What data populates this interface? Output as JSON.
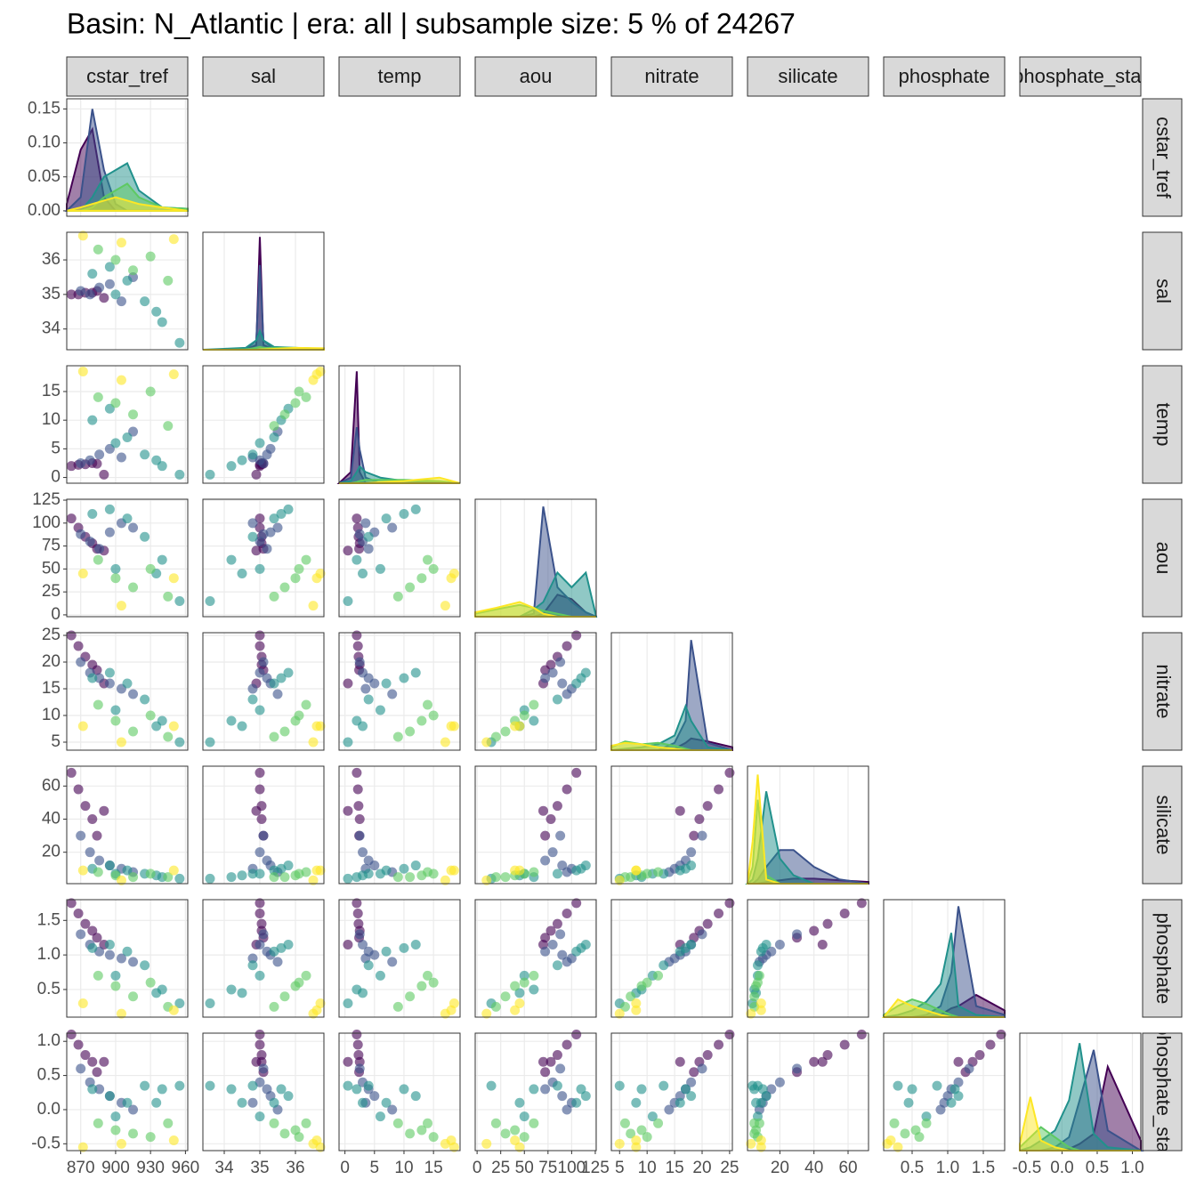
{
  "chart_data": {
    "type": "pairs",
    "title": "Basin: N_Atlantic | era: all | subsample size: 5 % of 24267",
    "variables": [
      {
        "name": "cstar_tref",
        "lim": [
          858,
          962
        ],
        "ticks": [
          870,
          900,
          930,
          960
        ]
      },
      {
        "name": "sal",
        "lim": [
          33.4,
          36.8
        ],
        "ticks": [
          34,
          35,
          36
        ]
      },
      {
        "name": "temp",
        "lim": [
          -1,
          19.5
        ],
        "ticks": [
          0,
          5,
          10,
          15
        ]
      },
      {
        "name": "aou",
        "lim": [
          -2,
          126
        ],
        "ticks": [
          0,
          25,
          50,
          75,
          100,
          125
        ]
      },
      {
        "name": "nitrate",
        "lim": [
          3.5,
          25.5
        ],
        "ticks": [
          5,
          10,
          15,
          20,
          25
        ]
      },
      {
        "name": "silicate",
        "lim": [
          1,
          72
        ],
        "ticks": [
          20,
          40,
          60
        ]
      },
      {
        "name": "phosphate",
        "lim": [
          0.1,
          1.8
        ],
        "ticks": [
          0.5,
          {
            "value": 1,
            "label": "1.0"
          },
          1.5
        ]
      },
      {
        "name": "phosphate_star",
        "lim": [
          -0.6,
          1.12
        ],
        "ticks": [
          -0.5,
          {
            "value": 0,
            "label": "0.0"
          },
          0.5,
          {
            "value": 1,
            "label": "1.0"
          }
        ]
      }
    ],
    "series": [
      {
        "color": "#440154",
        "values": [
          [
            862,
            35.0,
            2.0,
            105,
            25,
            68,
            1.75,
            1.1
          ],
          [
            868,
            35.0,
            2.2,
            95,
            23,
            58,
            1.6,
            0.95
          ],
          [
            874,
            35.05,
            2.3,
            85,
            21,
            48,
            1.45,
            0.8
          ],
          [
            880,
            35.05,
            2.5,
            78,
            19.5,
            40,
            1.35,
            0.7
          ],
          [
            884,
            35.1,
            2.4,
            72,
            18.5,
            30,
            1.25,
            0.55
          ],
          [
            890,
            34.9,
            0.5,
            70,
            16,
            45,
            1.15,
            0.7
          ]
        ]
      },
      {
        "color": "#3b528b",
        "values": [
          [
            870,
            35.1,
            2.5,
            88,
            20,
            30,
            1.3,
            0.6
          ],
          [
            878,
            35.0,
            3.0,
            80,
            18,
            20,
            1.15,
            0.4
          ],
          [
            886,
            35.2,
            4.0,
            72,
            17,
            15,
            1.05,
            0.3
          ],
          [
            895,
            35.3,
            5.0,
            90,
            16,
            12,
            1.0,
            0.2
          ],
          [
            905,
            34.8,
            3.5,
            100,
            15,
            10,
            0.95,
            0.1
          ],
          [
            915,
            35.5,
            8.0,
            95,
            14,
            8,
            0.9,
            0.0
          ]
        ]
      },
      {
        "color": "#21918c",
        "values": [
          [
            880,
            35.6,
            10.0,
            110,
            17,
            10,
            1.1,
            0.3
          ],
          [
            895,
            35.8,
            12.0,
            115,
            18,
            12,
            1.15,
            0.2
          ],
          [
            910,
            35.4,
            7.0,
            105,
            16,
            9,
            1.05,
            0.1
          ],
          [
            925,
            34.8,
            4.0,
            85,
            13,
            7,
            0.85,
            0.35
          ],
          [
            940,
            34.2,
            2.0,
            60,
            9,
            5,
            0.5,
            0.3
          ],
          [
            955,
            33.6,
            0.5,
            15,
            5,
            4,
            0.3,
            0.35
          ],
          [
            900,
            35.0,
            6.0,
            50,
            11,
            7,
            0.7,
            -0.1
          ],
          [
            935,
            34.5,
            3.0,
            45,
            8,
            6,
            0.45,
            0.1
          ]
        ]
      },
      {
        "color": "#5ec962",
        "values": [
          [
            885,
            36.3,
            14.0,
            60,
            12,
            8,
            0.7,
            -0.2
          ],
          [
            900,
            36.0,
            13.0,
            40,
            9,
            6,
            0.55,
            -0.3
          ],
          [
            915,
            35.7,
            11.0,
            30,
            7,
            5,
            0.4,
            -0.35
          ],
          [
            930,
            36.1,
            15.0,
            50,
            10,
            7,
            0.6,
            -0.4
          ],
          [
            945,
            35.4,
            9.0,
            20,
            6,
            5,
            0.25,
            -0.2
          ]
        ]
      },
      {
        "color": "#fde725",
        "values": [
          [
            872,
            36.7,
            18.5,
            45,
            8,
            9,
            0.3,
            -0.55
          ],
          [
            905,
            36.5,
            17.0,
            10,
            5,
            3,
            0.15,
            -0.5
          ],
          [
            950,
            36.6,
            18.0,
            40,
            8,
            9,
            0.2,
            -0.45
          ]
        ]
      }
    ],
    "densities": [
      {
        "x": [
          858,
          870,
          880,
          890,
          900,
          910,
          920,
          940,
          962
        ],
        "ylim": [
          -0.008,
          0.165
        ],
        "yticks": [
          {
            "value": 0,
            "label": "0.00"
          },
          0.05,
          {
            "value": 0.1,
            "label": "0.10"
          },
          0.15
        ],
        "curves": [
          [
            0.01,
            0.09,
            0.12,
            0.02,
            0,
            0,
            0,
            0,
            0
          ],
          [
            0,
            0.02,
            0.15,
            0.06,
            0.01,
            0,
            0,
            0,
            0
          ],
          [
            0,
            0,
            0.02,
            0.05,
            0.06,
            0.07,
            0.03,
            0.005,
            0.003
          ],
          [
            0,
            0,
            0.005,
            0.02,
            0.03,
            0.04,
            0.02,
            0.005,
            0.003
          ],
          [
            0,
            0.005,
            0.01,
            0.015,
            0.02,
            0.015,
            0.01,
            0.005,
            0
          ]
        ]
      },
      {
        "x": [
          33.4,
          34.0,
          34.6,
          34.9,
          35.0,
          35.1,
          35.4,
          36.0,
          36.8
        ],
        "ylim": [
          0,
          12.5
        ],
        "curves": [
          [
            0,
            0,
            0,
            0.5,
            12,
            0.5,
            0,
            0,
            0
          ],
          [
            0,
            0,
            0,
            1,
            9,
            1,
            0,
            0,
            0
          ],
          [
            0,
            0.1,
            0.2,
            1,
            2,
            1,
            0.3,
            0.2,
            0.1
          ],
          [
            0,
            0,
            0.05,
            0.2,
            0.3,
            0.2,
            0.2,
            0.2,
            0.1
          ],
          [
            0,
            0,
            0,
            0,
            0.05,
            0.05,
            0.1,
            0.2,
            0.15
          ]
        ]
      },
      {
        "x": [
          -1,
          1,
          2,
          2.5,
          3.5,
          6,
          10,
          16,
          19.5
        ],
        "ylim": [
          0,
          1.05
        ],
        "curves": [
          [
            0,
            0.1,
            1.0,
            0.1,
            0,
            0,
            0,
            0,
            0
          ],
          [
            0,
            0.05,
            0.5,
            0.3,
            0.05,
            0,
            0,
            0,
            0
          ],
          [
            0,
            0.02,
            0.1,
            0.15,
            0.1,
            0.05,
            0.02,
            0.01,
            0
          ],
          [
            0,
            0,
            0.01,
            0.02,
            0.03,
            0.03,
            0.03,
            0.02,
            0
          ],
          [
            0,
            0,
            0,
            0,
            0,
            0.01,
            0.02,
            0.05,
            0
          ]
        ]
      },
      {
        "x": [
          -2,
          20,
          45,
          60,
          70,
          85,
          100,
          115,
          126
        ],
        "ylim": [
          0,
          0.08
        ],
        "curves": [
          [
            0,
            0,
            0,
            0,
            0.002,
            0.015,
            0.012,
            0.003,
            0
          ],
          [
            0,
            0,
            0,
            0.002,
            0.075,
            0.02,
            0.01,
            0.003,
            0
          ],
          [
            0,
            0,
            0,
            0.005,
            0.01,
            0.03,
            0.02,
            0.03,
            0
          ],
          [
            0.002,
            0.005,
            0.008,
            0.006,
            0.004,
            0.002,
            0,
            0,
            0
          ],
          [
            0.003,
            0.006,
            0.01,
            0.006,
            0.002,
            0,
            0,
            0,
            0
          ]
        ]
      },
      {
        "x": [
          3.5,
          6,
          9,
          12,
          15,
          17,
          18,
          21,
          25.5
        ],
        "ylim": [
          0,
          0.8
        ],
        "curves": [
          [
            0,
            0,
            0,
            0,
            0.01,
            0.05,
            0.08,
            0.06,
            0.02
          ],
          [
            0,
            0,
            0,
            0,
            0.05,
            0.2,
            0.75,
            0.05,
            0
          ],
          [
            0,
            0.01,
            0.02,
            0.04,
            0.1,
            0.3,
            0.2,
            0.02,
            0
          ],
          [
            0.02,
            0.06,
            0.04,
            0.05,
            0.03,
            0.01,
            0,
            0,
            0
          ],
          [
            0.03,
            0.05,
            0.04,
            0.02,
            0.01,
            0,
            0,
            0,
            0
          ]
        ]
      },
      {
        "x": [
          1,
          4,
          7,
          12,
          20,
          28,
          40,
          55,
          72
        ],
        "ylim": [
          0,
          0.14
        ],
        "curves": [
          [
            0,
            0,
            0,
            0.002,
            0.004,
            0.006,
            0.006,
            0.004,
            0.002
          ],
          [
            0,
            0,
            0.005,
            0.02,
            0.04,
            0.04,
            0.02,
            0.005,
            0
          ],
          [
            0,
            0.005,
            0.03,
            0.11,
            0.03,
            0.01,
            0,
            0,
            0
          ],
          [
            0,
            0.02,
            0.1,
            0.01,
            0,
            0,
            0,
            0,
            0
          ],
          [
            0,
            0.05,
            0.13,
            0.005,
            0,
            0,
            0,
            0,
            0
          ]
        ]
      },
      {
        "x": [
          0.1,
          0.3,
          0.5,
          0.7,
          0.9,
          1.05,
          1.15,
          1.4,
          1.8
        ],
        "ylim": [
          0,
          5.3
        ],
        "curves": [
          [
            0,
            0,
            0,
            0,
            0.1,
            0.4,
            0.5,
            1.0,
            0.3
          ],
          [
            0,
            0,
            0,
            0.1,
            0.5,
            2,
            5,
            0.5,
            0.1
          ],
          [
            0,
            0.1,
            0.3,
            0.7,
            1.5,
            3.8,
            0.5,
            0.1,
            0
          ],
          [
            0.1,
            0.5,
            0.8,
            0.6,
            0.3,
            0.1,
            0,
            0,
            0
          ],
          [
            0,
            0.8,
            0.5,
            0.3,
            0.1,
            0,
            0,
            0,
            0
          ]
        ]
      },
      {
        "x": [
          -0.6,
          -0.45,
          -0.3,
          -0.1,
          0.1,
          0.25,
          0.45,
          0.65,
          1.12
        ],
        "ylim": [
          0,
          3.5
        ],
        "curves": [
          [
            0,
            0,
            0,
            0,
            0.05,
            0.2,
            0.5,
            2.5,
            0.3
          ],
          [
            0,
            0,
            0,
            0.1,
            0.4,
            1.5,
            3.0,
            0.6,
            0
          ],
          [
            0,
            0.1,
            0.3,
            0.6,
            1.5,
            3.2,
            0.5,
            0.1,
            0
          ],
          [
            0.1,
            0.4,
            0.7,
            0.4,
            0.1,
            0,
            0,
            0,
            0
          ],
          [
            0.2,
            1.6,
            0.3,
            0.1,
            0,
            0,
            0,
            0,
            0
          ]
        ]
      }
    ]
  }
}
